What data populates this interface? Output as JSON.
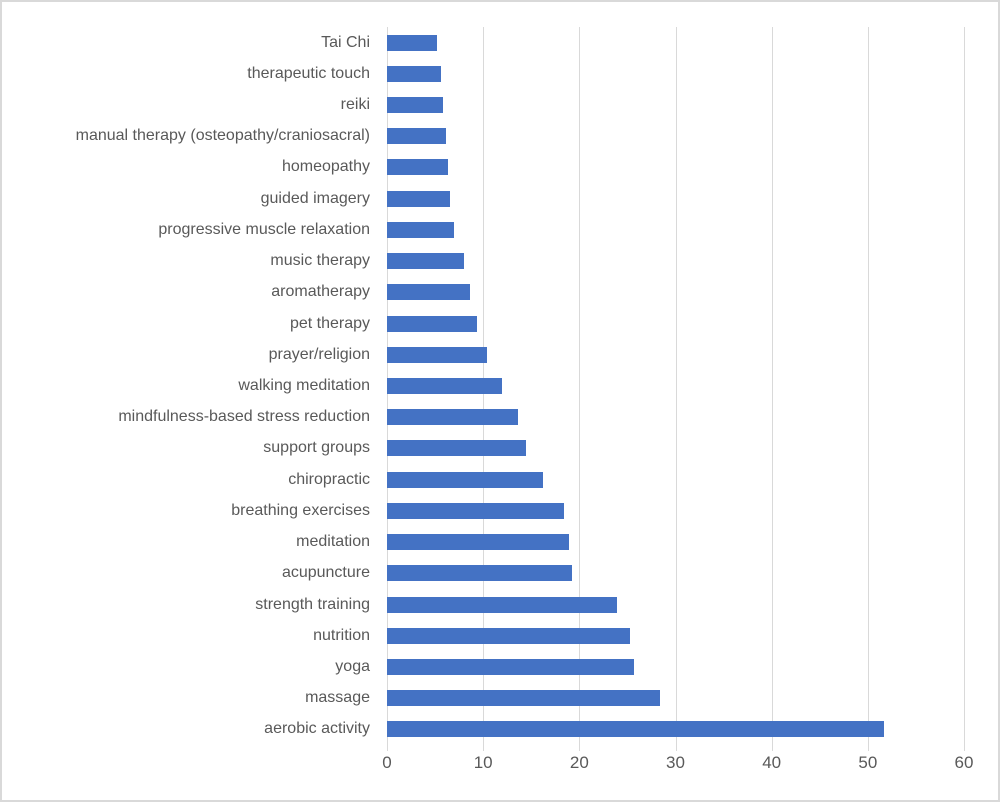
{
  "chart_data": {
    "type": "bar",
    "orientation": "horizontal",
    "title": "",
    "xlabel": "",
    "ylabel": "",
    "xlim": [
      0,
      60
    ],
    "x_ticks": [
      0,
      10,
      20,
      30,
      40,
      50,
      60
    ],
    "grid": "vertical",
    "legend": "none",
    "categories": [
      "Tai Chi",
      "therapeutic touch",
      "reiki",
      "manual therapy (osteopathy/craniosacral)",
      "homeopathy",
      "guided imagery",
      "progressive muscle relaxation",
      "music therapy",
      "aromatherapy",
      "pet therapy",
      "prayer/religion",
      "walking meditation",
      "mindfulness-based stress reduction",
      "support groups",
      "chiropractic",
      "breathing exercises",
      "meditation",
      "acupuncture",
      "strength training",
      "nutrition",
      "yoga",
      "massage",
      "aerobic activity"
    ],
    "values": [
      5.2,
      5.6,
      5.8,
      6.1,
      6.3,
      6.5,
      7.0,
      8.0,
      8.6,
      9.4,
      10.4,
      12.0,
      13.6,
      14.5,
      16.2,
      18.4,
      18.9,
      19.2,
      23.9,
      25.3,
      25.7,
      28.4,
      51.7
    ],
    "colors": {
      "bar": "#4472C4",
      "gridline": "#D9D9D9",
      "text": "#595959",
      "frame_border": "#D9D9D9",
      "background": "#FFFFFF"
    }
  }
}
